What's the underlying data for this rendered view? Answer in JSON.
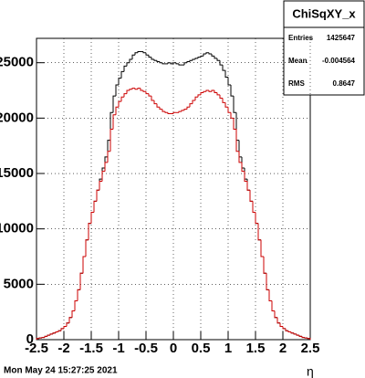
{
  "chart_data": {
    "type": "histogram",
    "title": "ChiSqXY_x",
    "timestamp": "Mon May 24 15:27:25 2021",
    "x_label": "η",
    "stats": [
      {
        "label": "Entries",
        "value": 1425647
      },
      {
        "label": "Mean",
        "value": -0.004564
      },
      {
        "label": "RMS",
        "value": 0.8647
      }
    ],
    "bins": [
      -2.5,
      -2.45,
      -2.4,
      -2.35,
      -2.3,
      -2.25,
      -2.2,
      -2.15,
      -2.1,
      -2.05,
      -2,
      -1.95,
      -1.9,
      -1.85,
      -1.8,
      -1.75,
      -1.7,
      -1.65,
      -1.6,
      -1.55,
      -1.5,
      -1.45,
      -1.4,
      -1.35,
      -1.3,
      -1.25,
      -1.2,
      -1.15,
      -1.1,
      -1.05,
      -1,
      -0.95,
      -0.9,
      -0.85,
      -0.8,
      -0.75,
      -0.7,
      -0.65,
      -0.6,
      -0.55,
      -0.5,
      -0.45,
      -0.4,
      -0.35,
      -0.3,
      -0.25,
      -0.2,
      -0.15,
      -0.1,
      -0.05,
      0,
      0.05,
      0.1,
      0.15,
      0.2,
      0.25,
      0.3,
      0.35,
      0.4,
      0.45,
      0.5,
      0.55,
      0.6,
      0.65,
      0.7,
      0.75,
      0.8,
      0.85,
      0.9,
      0.95,
      1,
      1.05,
      1.1,
      1.15,
      1.2,
      1.25,
      1.3,
      1.35,
      1.4,
      1.45,
      1.5,
      1.55,
      1.6,
      1.65,
      1.7,
      1.75,
      1.8,
      1.85,
      1.9,
      1.95,
      2,
      2.05,
      2.1,
      2.15,
      2.2,
      2.25,
      2.3,
      2.35,
      2.4,
      2.45,
      2.5
    ],
    "series": [
      {
        "name": "black",
        "color": "#000000",
        "values": [
          100,
          150,
          200,
          300,
          400,
          500,
          600,
          700,
          800,
          1000,
          1200,
          1500,
          2000,
          2600,
          3500,
          4500,
          6000,
          7500,
          9000,
          10500,
          11500,
          12500,
          13500,
          14500,
          15500,
          16500,
          18000,
          20500,
          22000,
          23000,
          23600,
          24200,
          24700,
          25000,
          25300,
          25700,
          25900,
          26000,
          26000,
          25900,
          25700,
          25500,
          25300,
          25200,
          25100,
          25000,
          24900,
          24900,
          25000,
          24900,
          25000,
          24900,
          24800,
          24800,
          25000,
          25100,
          25200,
          25300,
          25400,
          25500,
          25600,
          25800,
          25900,
          25800,
          25600,
          25400,
          25200,
          24800,
          24300,
          23700,
          23000,
          22000,
          20500,
          18000,
          16500,
          15500,
          14500,
          13500,
          12500,
          11500,
          10500,
          9000,
          7500,
          6000,
          4500,
          3500,
          2600,
          2000,
          1500,
          1200,
          1000,
          800,
          700,
          600,
          500,
          400,
          300,
          200,
          150,
          100
        ]
      },
      {
        "name": "red",
        "color": "#cc0000",
        "values": [
          100,
          150,
          200,
          300,
          400,
          500,
          600,
          700,
          800,
          1000,
          1200,
          1500,
          2000,
          2600,
          3500,
          4500,
          6000,
          7500,
          9000,
          10500,
          11500,
          12500,
          13500,
          14300,
          15200,
          16000,
          17000,
          19000,
          20300,
          21000,
          21500,
          21900,
          22200,
          22500,
          22600,
          22700,
          22600,
          22700,
          22500,
          22400,
          22200,
          22000,
          21600,
          21300,
          21000,
          20800,
          20600,
          20500,
          20400,
          20400,
          20500,
          20500,
          20600,
          20700,
          20800,
          21000,
          21300,
          21600,
          21900,
          22100,
          22300,
          22400,
          22500,
          22400,
          22500,
          22300,
          22100,
          21800,
          21400,
          21000,
          20500,
          20000,
          19000,
          17000,
          16000,
          15200,
          14300,
          13500,
          12500,
          11500,
          10500,
          9000,
          7500,
          6000,
          4500,
          3500,
          2600,
          2000,
          1500,
          1200,
          1000,
          800,
          700,
          600,
          500,
          400,
          300,
          200,
          150,
          100
        ]
      }
    ],
    "xlim": [
      -2.5,
      2.5
    ],
    "xticks": [
      -2.5,
      -2,
      -1.5,
      -1,
      -0.5,
      0,
      0.5,
      1,
      1.5,
      2,
      2.5
    ],
    "ylim": [
      0,
      27200
    ],
    "yticks": [
      0,
      5000,
      10000,
      15000,
      20000,
      25000
    ],
    "grid": true
  }
}
